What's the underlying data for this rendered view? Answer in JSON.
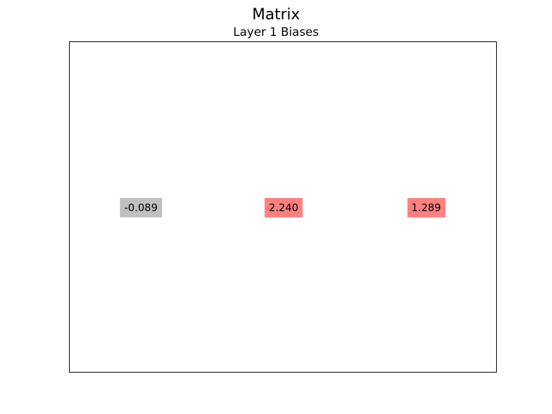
{
  "figure": {
    "title": "Matrix"
  },
  "chart_data": {
    "type": "table",
    "title": "Layer 1 Biases",
    "xlabel": "",
    "ylabel": "",
    "grid": false,
    "rows": 1,
    "cols": 3,
    "values": [
      -0.089,
      2.24,
      1.289
    ],
    "labels": [
      "-0.089",
      "2.240",
      "1.289"
    ],
    "cell_colors": [
      "#c0c0c0",
      "#ff8080",
      "#ff8080"
    ]
  }
}
